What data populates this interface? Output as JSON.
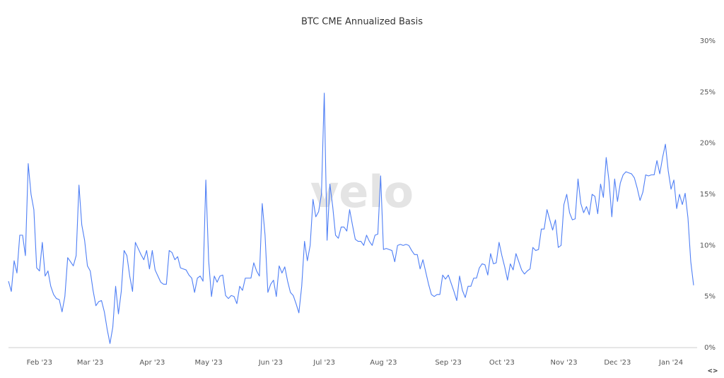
{
  "chart_data": {
    "type": "line",
    "title": "BTC CME Annualized Basis",
    "watermark": "velo",
    "nav": "<>",
    "categories": [
      null,
      null,
      null,
      null,
      null,
      null,
      null,
      null,
      null,
      null,
      null,
      "Feb '23",
      null,
      null,
      null,
      null,
      null,
      null,
      null,
      null,
      null,
      null,
      null,
      null,
      null,
      null,
      null,
      null,
      null,
      "Mar '23",
      null,
      null,
      null,
      null,
      null,
      null,
      null,
      null,
      null,
      null,
      null,
      null,
      null,
      null,
      null,
      null,
      null,
      null,
      null,
      null,
      null,
      "Apr '23",
      null,
      null,
      null,
      null,
      null,
      null,
      null,
      null,
      null,
      null,
      null,
      null,
      null,
      null,
      null,
      null,
      null,
      null,
      null,
      "May '23",
      null,
      null,
      null,
      null,
      null,
      null,
      null,
      null,
      null,
      null,
      null,
      null,
      null,
      null,
      null,
      null,
      null,
      null,
      null,
      null,
      null,
      "Jun '23",
      null,
      null,
      null,
      null,
      null,
      null,
      null,
      null,
      null,
      null,
      null,
      null,
      null,
      null,
      null,
      null,
      null,
      null,
      "Jul '23",
      null,
      null,
      null,
      null,
      null,
      null,
      null,
      null,
      null,
      null,
      null,
      null,
      null,
      null,
      null,
      null,
      null,
      null,
      null,
      null,
      "Aug '23",
      null,
      null,
      null,
      null,
      null,
      null,
      null,
      null,
      null,
      null,
      null,
      null,
      null,
      null,
      null,
      null,
      null,
      null,
      null,
      null,
      null,
      null,
      "Sep '23",
      null,
      null,
      null,
      null,
      null,
      null,
      null,
      null,
      null,
      null,
      null,
      null,
      null,
      null,
      null,
      null,
      null,
      null,
      "Oct '23",
      null,
      null,
      null,
      null,
      null,
      null,
      null,
      null,
      null,
      null,
      null,
      null,
      null,
      null,
      null,
      null,
      null,
      null,
      null,
      null,
      null,
      "Nov '23",
      null,
      null,
      null,
      null,
      null,
      null,
      null,
      null,
      null,
      null,
      null,
      null,
      null,
      null,
      null,
      null,
      null,
      null,
      "Dec '23",
      null,
      null,
      null,
      null,
      null,
      null,
      null,
      null,
      null,
      null,
      null,
      null,
      null,
      null,
      null,
      null,
      null,
      null,
      "Jan '24",
      null,
      null,
      null,
      null,
      null,
      null,
      null,
      null
    ],
    "values": [
      6.5,
      5.5,
      8.5,
      7.3,
      11,
      11,
      9,
      18,
      15,
      13.5,
      7.8,
      7.5,
      10.3,
      7,
      7.5,
      6,
      5.2,
      4.8,
      4.7,
      3.5,
      5,
      8.8,
      8.4,
      8,
      9,
      15.9,
      12,
      10.5,
      8,
      7.5,
      5.6,
      4.1,
      4.5,
      4.6,
      3.5,
      1.8,
      0.4,
      2,
      6,
      3.3,
      5.5,
      9.5,
      9,
      7,
      5.5,
      10.3,
      9.7,
      9.1,
      8.6,
      9.5,
      7.7,
      9.5,
      7.6,
      7,
      6.4,
      6.2,
      6.2,
      9.5,
      9.3,
      8.6,
      8.9,
      7.8,
      7.7,
      7.6,
      7.1,
      6.8,
      5.4,
      6.8,
      7,
      6.5,
      16.4,
      8.5,
      5,
      7,
      6.4,
      7,
      7.1,
      5.1,
      4.8,
      5.1,
      5,
      4.3,
      6,
      5.6,
      6.8,
      6.8,
      6.8,
      8.3,
      7.5,
      7,
      14.1,
      11,
      5.4,
      6.2,
      6.6,
      5,
      8,
      7.3,
      7.9,
      6.5,
      5.4,
      5.1,
      4.3,
      3.4,
      6,
      10.4,
      8.5,
      10,
      14.5,
      12.8,
      13.3,
      15,
      24.9,
      10.5,
      16,
      13.8,
      11,
      10.7,
      11.8,
      11.8,
      11.4,
      13.5,
      12,
      10.6,
      10.4,
      10.4,
      10,
      11,
      10.4,
      10,
      11,
      11.1,
      16.8,
      9.6,
      9.7,
      9.6,
      9.5,
      8.4,
      10,
      10.1,
      10,
      10.1,
      10,
      9.5,
      9.1,
      9.1,
      7.7,
      8.6,
      7.4,
      6.2,
      5.2,
      5,
      5.2,
      5.2,
      7.1,
      6.7,
      7.1,
      6.3,
      5.5,
      4.6,
      7,
      5.6,
      4.9,
      6,
      6,
      6.8,
      6.8,
      7.8,
      8.2,
      8.1,
      7.1,
      9.2,
      8.2,
      8.3,
      10.3,
      9,
      7.9,
      6.6,
      8.2,
      7.6,
      9.2,
      8.4,
      7.6,
      7.2,
      7.5,
      7.7,
      9.8,
      9.5,
      9.6,
      11.6,
      11.6,
      13.5,
      12.5,
      11.5,
      12.5,
      9.8,
      10,
      14,
      15,
      13.2,
      12.5,
      12.6,
      16.5,
      14.1,
      13.2,
      13.8,
      13,
      15,
      14.8,
      13.1,
      16,
      14.7,
      18.6,
      16.3,
      12.8,
      16.5,
      14.3,
      16.1,
      16.9,
      17.2,
      17.1,
      17,
      16.6,
      15.6,
      14.4,
      15.2,
      16.9,
      16.8,
      16.9,
      16.9,
      18.3,
      17,
      18.6,
      19.9,
      17.3,
      15.5,
      16.4,
      13.6,
      15,
      14,
      15.1,
      12.7,
      8.4,
      6.1
    ],
    "color": "#4f7ff5",
    "ylim": [
      0,
      30
    ],
    "yticks": [
      {
        "value": 0,
        "label": "0%"
      },
      {
        "value": 5,
        "label": "5%"
      },
      {
        "value": 10,
        "label": "10%"
      },
      {
        "value": 15,
        "label": "15%"
      },
      {
        "value": 20,
        "label": "20%"
      },
      {
        "value": 25,
        "label": "25%"
      },
      {
        "value": 30,
        "label": "30%"
      }
    ],
    "grid": false
  }
}
